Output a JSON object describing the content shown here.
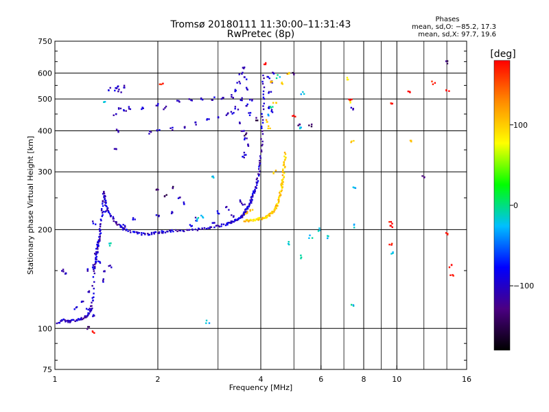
{
  "chart_data": {
    "type": "scatter",
    "title": "Tromsø 20180111 11:30:00–11:31:43",
    "subtitle": "RwPretec (8p)",
    "xlabel": "Frequency [MHz]",
    "ylabel": "Stationary phase Virtual Height [km]",
    "x_scale": "log",
    "y_scale": "log",
    "xlim": [
      1,
      16
    ],
    "ylim": [
      75,
      750
    ],
    "x_ticks": [
      1,
      2,
      4,
      6,
      8,
      10,
      16
    ],
    "x_tick_labels": [
      "1",
      "2",
      "4",
      "6",
      "8",
      "10",
      "16"
    ],
    "x_minor_ticks": [
      3,
      5,
      7,
      9,
      12,
      14
    ],
    "y_ticks": [
      75,
      100,
      200,
      300,
      400,
      500,
      600,
      750
    ],
    "y_tick_labels": [
      "75",
      "100",
      "200",
      "300",
      "400",
      "500",
      "600",
      "750"
    ],
    "grid": true,
    "phase_info": {
      "heading": "Phases",
      "line_o": "mean, sd,O: −85.2, 17.3",
      "line_x": "mean, sd,X:  97.7, 19.6"
    },
    "colorbar": {
      "label": "[deg]",
      "range": [
        -180,
        180
      ],
      "ticks": [
        -100,
        0,
        100
      ],
      "tick_labels": [
        "−100",
        "0",
        "100"
      ],
      "colors": [
        "#000000",
        "#4b0082",
        "#0000ff",
        "#00bfff",
        "#00ff00",
        "#ffff00",
        "#ff8c00",
        "#ff0000"
      ]
    },
    "series": [
      {
        "trace": [
          [
            1.02,
            104
          ],
          [
            1.06,
            106
          ],
          [
            1.1,
            105
          ],
          [
            1.15,
            106
          ],
          [
            1.2,
            107
          ],
          [
            1.24,
            109
          ],
          [
            1.26,
            112
          ],
          [
            1.28,
            115
          ],
          [
            1.29,
            125
          ],
          [
            1.3,
            150
          ],
          [
            1.31,
            158
          ],
          [
            1.32,
            165
          ],
          [
            1.33,
            175
          ],
          [
            1.34,
            182
          ],
          [
            1.35,
            186
          ],
          [
            1.36,
            195
          ],
          [
            1.37,
            215
          ],
          [
            1.38,
            240
          ],
          [
            1.39,
            262
          ],
          [
            1.4,
            245
          ],
          [
            1.42,
            232
          ],
          [
            1.45,
            222
          ],
          [
            1.5,
            212
          ],
          [
            1.55,
            205
          ],
          [
            1.6,
            200
          ],
          [
            1.7,
            196
          ],
          [
            1.8,
            194
          ],
          [
            1.9,
            194
          ],
          [
            2.0,
            196
          ],
          [
            2.1,
            197
          ],
          [
            2.2,
            198
          ],
          [
            2.4,
            199
          ],
          [
            2.6,
            200
          ],
          [
            2.8,
            202
          ],
          [
            3.0,
            205
          ],
          [
            3.2,
            208
          ],
          [
            3.3,
            211
          ],
          [
            3.4,
            214
          ],
          [
            3.5,
            218
          ],
          [
            3.55,
            222
          ],
          [
            3.6,
            226
          ],
          [
            3.65,
            232
          ],
          [
            3.7,
            238
          ],
          [
            3.75,
            245
          ],
          [
            3.8,
            255
          ],
          [
            3.85,
            265
          ],
          [
            3.9,
            280
          ],
          [
            3.95,
            300
          ],
          [
            4.0,
            330
          ],
          [
            4.03,
            380
          ],
          [
            4.05,
            440
          ],
          [
            4.07,
            520
          ],
          [
            4.08,
            600
          ]
        ],
        "trace_phase": -100,
        "scatter_phase": -100,
        "points": [
          [
            1.5,
            535
          ],
          [
            1.52,
            545
          ],
          [
            1.55,
            530
          ],
          [
            1.58,
            545
          ],
          [
            1.45,
            535
          ],
          [
            1.5,
            450
          ],
          [
            1.55,
            470
          ],
          [
            1.52,
            400
          ],
          [
            1.5,
            350
          ],
          [
            1.6,
            460
          ],
          [
            1.65,
            470
          ],
          [
            1.8,
            470
          ],
          [
            2.0,
            480
          ],
          [
            2.1,
            470
          ],
          [
            2.3,
            490
          ],
          [
            2.5,
            495
          ],
          [
            2.7,
            500
          ],
          [
            2.9,
            500
          ],
          [
            3.1,
            505
          ],
          [
            3.3,
            510
          ],
          [
            3.4,
            530
          ],
          [
            3.45,
            560
          ],
          [
            3.5,
            600
          ],
          [
            3.55,
            620
          ],
          [
            3.6,
            580
          ],
          [
            3.62,
            540
          ],
          [
            3.5,
            500
          ],
          [
            3.4,
            470
          ],
          [
            3.3,
            455
          ],
          [
            3.2,
            450
          ],
          [
            3.0,
            440
          ],
          [
            2.8,
            430
          ],
          [
            2.6,
            420
          ],
          [
            2.4,
            410
          ],
          [
            2.2,
            405
          ],
          [
            2.0,
            400
          ],
          [
            1.9,
            395
          ],
          [
            3.5,
            420
          ],
          [
            3.55,
            400
          ],
          [
            3.6,
            380
          ],
          [
            3.65,
            360
          ],
          [
            3.6,
            340
          ],
          [
            3.55,
            330
          ],
          [
            3.7,
            450
          ],
          [
            3.75,
            500
          ],
          [
            3.65,
            480
          ],
          [
            4.2,
            470
          ],
          [
            4.3,
            460
          ],
          [
            4.25,
            520
          ],
          [
            4.3,
            560
          ],
          [
            4.35,
            600
          ],
          [
            4.2,
            580
          ],
          [
            7.4,
            465
          ],
          [
            1.25,
            150
          ],
          [
            1.3,
            155
          ],
          [
            1.35,
            160
          ],
          [
            1.4,
            150
          ],
          [
            1.45,
            155
          ],
          [
            1.38,
            140
          ],
          [
            1.32,
            170
          ],
          [
            1.26,
            130
          ],
          [
            1.2,
            120
          ],
          [
            1.15,
            115
          ],
          [
            1.05,
            150
          ],
          [
            1.08,
            148
          ],
          [
            1.25,
            115
          ],
          [
            1.3,
            110
          ],
          [
            1.1,
            104
          ],
          [
            1.35,
            200
          ],
          [
            1.3,
            210
          ],
          [
            1.4,
            225
          ],
          [
            1.6,
            205
          ],
          [
            1.7,
            215
          ],
          [
            2.5,
            205
          ],
          [
            2.6,
            215
          ],
          [
            2.9,
            210
          ],
          [
            3.0,
            225
          ],
          [
            3.2,
            232
          ],
          [
            3.3,
            220
          ],
          [
            3.35,
            215
          ],
          [
            3.5,
            246
          ],
          [
            3.55,
            238
          ],
          [
            2.0,
            222
          ],
          [
            2.2,
            225
          ],
          [
            2.3,
            250
          ],
          [
            2.4,
            240
          ]
        ]
      },
      {
        "trace": [
          [
            3.6,
            213
          ],
          [
            3.7,
            213
          ],
          [
            3.8,
            214
          ],
          [
            3.9,
            215
          ],
          [
            4.0,
            216
          ],
          [
            4.1,
            218
          ],
          [
            4.2,
            220
          ],
          [
            4.3,
            224
          ],
          [
            4.4,
            230
          ],
          [
            4.45,
            236
          ],
          [
            4.5,
            244
          ],
          [
            4.55,
            255
          ],
          [
            4.6,
            268
          ],
          [
            4.63,
            280
          ],
          [
            4.66,
            295
          ],
          [
            4.68,
            310
          ],
          [
            4.7,
            325
          ],
          [
            4.72,
            345
          ]
        ],
        "trace_phase": 100,
        "scatter_phase": 100,
        "points": [
          [
            4.2,
            430
          ],
          [
            4.25,
            410
          ],
          [
            3.65,
            225
          ],
          [
            3.75,
            230
          ],
          [
            4.6,
            560
          ],
          [
            4.8,
            600
          ],
          [
            7.2,
            575
          ],
          [
            7.3,
            490
          ],
          [
            7.4,
            370
          ],
          [
            11.0,
            375
          ],
          [
            4.4,
            300
          ],
          [
            4.3,
            560
          ],
          [
            4.4,
            490
          ]
        ]
      },
      {
        "trace": [],
        "trace_phase": 0,
        "scatter_phase": 180,
        "points": [
          [
            2.05,
            560
          ],
          [
            1.3,
            98
          ],
          [
            7.3,
            500
          ],
          [
            9.6,
            480
          ],
          [
            9.6,
            210
          ],
          [
            9.6,
            205
          ],
          [
            9.6,
            180
          ],
          [
            14.0,
            195
          ],
          [
            14.1,
            530
          ],
          [
            12.8,
            560
          ],
          [
            10.9,
            530
          ],
          [
            14.5,
            145
          ],
          [
            14.3,
            155
          ],
          [
            4.1,
            640
          ],
          [
            5.0,
            440
          ]
        ]
      },
      {
        "trace": [],
        "trace_phase": 0,
        "scatter_phase": -20,
        "points": [
          [
            2.8,
            105
          ],
          [
            5.2,
            410
          ],
          [
            5.9,
            200
          ],
          [
            5.6,
            190
          ],
          [
            4.85,
            182
          ],
          [
            7.45,
            205
          ],
          [
            7.5,
            270
          ],
          [
            7.45,
            117
          ],
          [
            9.7,
            170
          ],
          [
            5.2,
            165
          ],
          [
            6.3,
            190
          ],
          [
            2.6,
            215
          ],
          [
            2.7,
            220
          ],
          [
            1.45,
            180
          ],
          [
            1.4,
            490
          ],
          [
            4.2,
            450
          ],
          [
            4.3,
            475
          ],
          [
            5.3,
            520
          ],
          [
            4.5,
            585
          ],
          [
            2.9,
            290
          ]
        ]
      },
      {
        "trace": [],
        "trace_phase": -140,
        "scatter_phase": -140,
        "points": [
          [
            14.1,
            645
          ],
          [
            12.0,
            290
          ],
          [
            5.6,
            415
          ],
          [
            5.0,
            600
          ],
          [
            2.2,
            268
          ],
          [
            2.0,
            265
          ],
          [
            2.1,
            255
          ],
          [
            1.25,
            100
          ],
          [
            3.9,
            435
          ],
          [
            3.6,
            390
          ],
          [
            5.2,
            420
          ]
        ]
      }
    ]
  }
}
